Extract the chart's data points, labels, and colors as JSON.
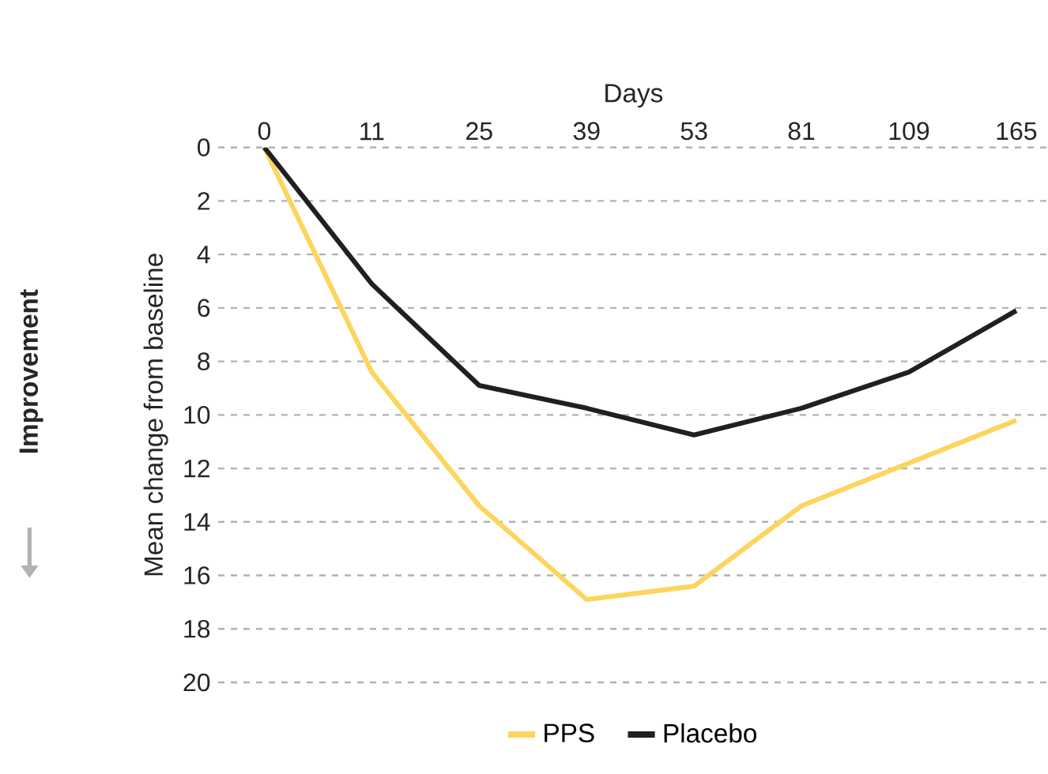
{
  "chart_data": {
    "type": "line",
    "xlabel": "Days",
    "ylabel": "Mean change from baseline",
    "categories": [
      "0",
      "11",
      "25",
      "39",
      "53",
      "81",
      "109",
      "165"
    ],
    "series": [
      {
        "name": "PPS",
        "color": "#fdd55e",
        "values": [
          0,
          8.4,
          13.4,
          16.9,
          16.4,
          13.4,
          11.8,
          10.2
        ]
      },
      {
        "name": "Placebo",
        "color": "#231f20",
        "values": [
          0,
          5.1,
          8.9,
          9.75,
          10.75,
          9.75,
          8.4,
          6.1
        ]
      }
    ],
    "ylim": [
      20,
      0
    ],
    "yticks": [
      0,
      2,
      4,
      6,
      8,
      10,
      12,
      14,
      16,
      18,
      20
    ],
    "grid": "y",
    "legend": "bottom",
    "marker": "none",
    "line_style": "solid",
    "annotations": [
      "Improvement"
    ]
  }
}
